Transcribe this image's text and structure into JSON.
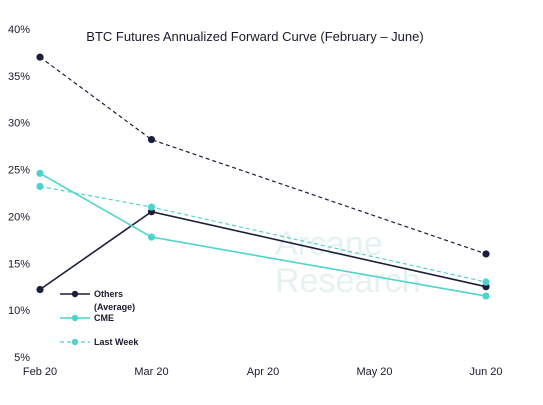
{
  "chart_data": {
    "type": "line",
    "title": "BTC Futures Annualized Forward Curve (February – June)",
    "xlabel": "",
    "ylabel": "",
    "categories": [
      "Feb 20",
      "Mar 20",
      "Apr 20",
      "May 20",
      "Jun 20"
    ],
    "ylim": [
      5,
      40
    ],
    "yticks": [
      "5%",
      "10%",
      "15%",
      "20%",
      "25%",
      "30%",
      "35%",
      "40%"
    ],
    "ytick_values": [
      5,
      10,
      15,
      20,
      25,
      30,
      35,
      40
    ],
    "grid": false,
    "legend_position": "bottom-left",
    "series": [
      {
        "name": "Others (Average)",
        "label_lines": [
          "Others",
          "(Average)"
        ],
        "style": "solid",
        "color": "#1b1f3b",
        "x": [
          "Feb 20",
          "Mar 20",
          "Jun 20"
        ],
        "values": [
          12.2,
          20.5,
          12.5
        ]
      },
      {
        "name": "CME",
        "label_lines": [
          "CME"
        ],
        "style": "solid",
        "color": "#4dd4cc",
        "x": [
          "Feb 20",
          "Mar 20",
          "Jun 20"
        ],
        "values": [
          24.6,
          17.8,
          11.5
        ]
      },
      {
        "name": "Last Week",
        "label_lines": [
          "Last Week"
        ],
        "style": "dashed",
        "color": "#4dd4cc",
        "x": [
          "Feb 20",
          "Mar 20",
          "Jun 20"
        ],
        "values": [
          23.2,
          21.0,
          13.0
        ]
      },
      {
        "name": "",
        "label_lines": [],
        "style": "dashed",
        "color": "#1b1f3b",
        "x": [
          "Feb 20",
          "Mar 20",
          "Jun 20"
        ],
        "values": [
          37.0,
          28.2,
          16.0
        ]
      }
    ]
  },
  "watermark": {
    "line1": "Arcane",
    "line2": "Research",
    "color": "#e6f2f2"
  }
}
